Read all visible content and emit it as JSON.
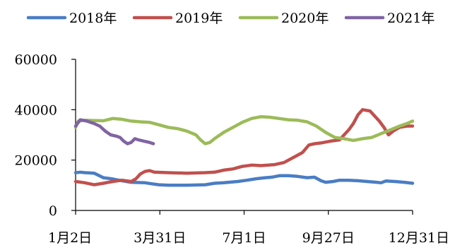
{
  "chart_data": {
    "type": "line",
    "x_ticks": [
      "1月2日",
      "3月31日",
      "7月1日",
      "9月27日",
      "12月31日"
    ],
    "x_range": [
      "1月2日",
      "12月31日"
    ],
    "y_ticks": [
      0,
      20000,
      40000,
      60000
    ],
    "ylim": [
      0,
      60000
    ],
    "grid": false,
    "legend_position": "top",
    "series": [
      {
        "name": "2018年",
        "color": "#4a7dc4",
        "points": [
          [
            0,
            15000
          ],
          [
            5,
            15200
          ],
          [
            10,
            15000
          ],
          [
            20,
            14800
          ],
          [
            30,
            13000
          ],
          [
            40,
            12500
          ],
          [
            50,
            11800
          ],
          [
            60,
            11200
          ],
          [
            75,
            11000
          ],
          [
            82,
            10600
          ],
          [
            90,
            10200
          ],
          [
            100,
            10000
          ],
          [
            120,
            10000
          ],
          [
            140,
            10200
          ],
          [
            150,
            10800
          ],
          [
            160,
            11000
          ],
          [
            175,
            11500
          ],
          [
            185,
            12000
          ],
          [
            195,
            12600
          ],
          [
            205,
            13000
          ],
          [
            212,
            13200
          ],
          [
            220,
            13800
          ],
          [
            230,
            13800
          ],
          [
            240,
            13500
          ],
          [
            250,
            13000
          ],
          [
            258,
            13200
          ],
          [
            265,
            11800
          ],
          [
            270,
            11200
          ],
          [
            278,
            11500
          ],
          [
            285,
            12000
          ],
          [
            295,
            12000
          ],
          [
            305,
            11800
          ],
          [
            315,
            11500
          ],
          [
            325,
            11200
          ],
          [
            330,
            11000
          ],
          [
            335,
            11700
          ],
          [
            345,
            11500
          ],
          [
            355,
            11200
          ],
          [
            364,
            10800
          ]
        ]
      },
      {
        "name": "2019年",
        "color": "#c0504d",
        "points": [
          [
            0,
            11500
          ],
          [
            10,
            11000
          ],
          [
            20,
            10200
          ],
          [
            30,
            10800
          ],
          [
            40,
            11500
          ],
          [
            50,
            12000
          ],
          [
            60,
            11500
          ],
          [
            65,
            12500
          ],
          [
            70,
            14500
          ],
          [
            75,
            15500
          ],
          [
            80,
            15800
          ],
          [
            85,
            15200
          ],
          [
            100,
            15000
          ],
          [
            120,
            14800
          ],
          [
            140,
            15000
          ],
          [
            150,
            15200
          ],
          [
            160,
            16000
          ],
          [
            170,
            16500
          ],
          [
            180,
            17500
          ],
          [
            190,
            18000
          ],
          [
            200,
            17800
          ],
          [
            215,
            18200
          ],
          [
            225,
            19000
          ],
          [
            235,
            21000
          ],
          [
            245,
            23000
          ],
          [
            252,
            26000
          ],
          [
            258,
            26500
          ],
          [
            265,
            26800
          ],
          [
            275,
            27500
          ],
          [
            285,
            28000
          ],
          [
            290,
            30000
          ],
          [
            295,
            32000
          ],
          [
            300,
            34500
          ],
          [
            305,
            38000
          ],
          [
            310,
            40000
          ],
          [
            318,
            39500
          ],
          [
            323,
            37500
          ],
          [
            328,
            35500
          ],
          [
            333,
            33000
          ],
          [
            338,
            30000
          ],
          [
            343,
            31500
          ],
          [
            350,
            33000
          ],
          [
            358,
            33500
          ],
          [
            364,
            33500
          ]
        ]
      },
      {
        "name": "2020年",
        "color": "#9bbb59",
        "points": [
          [
            0,
            33000
          ],
          [
            3,
            35500
          ],
          [
            10,
            35800
          ],
          [
            30,
            35600
          ],
          [
            40,
            36500
          ],
          [
            50,
            36200
          ],
          [
            60,
            35500
          ],
          [
            70,
            35200
          ],
          [
            80,
            35000
          ],
          [
            90,
            34000
          ],
          [
            100,
            33000
          ],
          [
            110,
            32500
          ],
          [
            120,
            31500
          ],
          [
            130,
            30000
          ],
          [
            135,
            28000
          ],
          [
            140,
            26500
          ],
          [
            145,
            27000
          ],
          [
            150,
            28500
          ],
          [
            160,
            31000
          ],
          [
            170,
            33000
          ],
          [
            180,
            35000
          ],
          [
            190,
            36500
          ],
          [
            200,
            37200
          ],
          [
            210,
            37000
          ],
          [
            220,
            36500
          ],
          [
            230,
            36000
          ],
          [
            240,
            35800
          ],
          [
            250,
            35200
          ],
          [
            260,
            33500
          ],
          [
            270,
            31000
          ],
          [
            280,
            29000
          ],
          [
            290,
            28500
          ],
          [
            300,
            27800
          ],
          [
            310,
            28500
          ],
          [
            320,
            29000
          ],
          [
            330,
            30500
          ],
          [
            340,
            32000
          ],
          [
            350,
            33500
          ],
          [
            358,
            34500
          ],
          [
            364,
            35500
          ]
        ]
      },
      {
        "name": "2021年",
        "color": "#8064a2",
        "points": [
          [
            0,
            33500
          ],
          [
            5,
            36000
          ],
          [
            12,
            35500
          ],
          [
            20,
            34500
          ],
          [
            26,
            33500
          ],
          [
            32,
            31500
          ],
          [
            38,
            30000
          ],
          [
            44,
            29500
          ],
          [
            48,
            29000
          ],
          [
            52,
            27500
          ],
          [
            56,
            26500
          ],
          [
            60,
            27000
          ],
          [
            64,
            28500
          ],
          [
            68,
            28000
          ],
          [
            74,
            27500
          ],
          [
            80,
            27000
          ],
          [
            84,
            26500
          ]
        ]
      }
    ]
  }
}
